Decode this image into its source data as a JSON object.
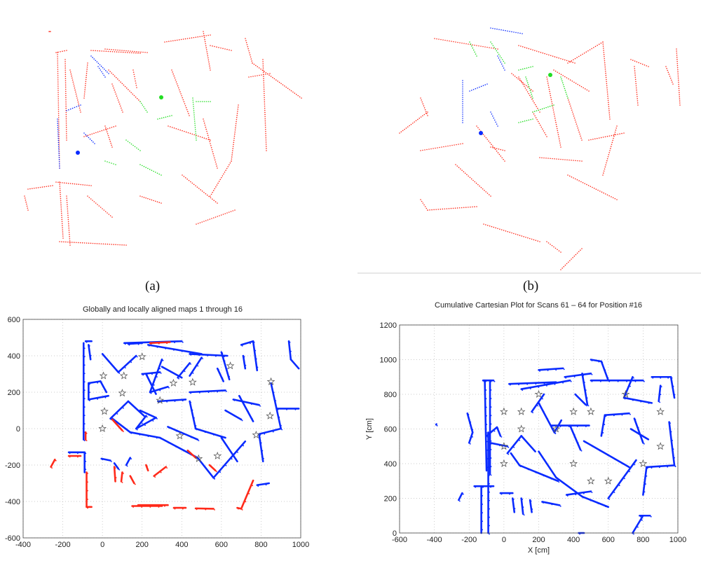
{
  "captions": {
    "a": "(a)",
    "b": "(b)"
  },
  "colors": {
    "red": "#ff2a1a",
    "green": "#22dd22",
    "blue": "#0a2bff",
    "star": "#555555"
  },
  "chart_data": [
    {
      "id": "a",
      "type": "scatter",
      "axes": "none",
      "grid": false,
      "series_colors": [
        "red",
        "green",
        "blue"
      ],
      "markers": [
        {
          "color": "blue",
          "shape": "dot"
        },
        {
          "color": "green",
          "shape": "dot"
        }
      ]
    },
    {
      "id": "b",
      "type": "scatter",
      "axes": "none",
      "grid": false,
      "series_colors": [
        "red",
        "green",
        "blue"
      ],
      "markers": [
        {
          "color": "blue",
          "shape": "dot"
        },
        {
          "color": "green",
          "shape": "dot"
        }
      ]
    },
    {
      "id": "c",
      "type": "scatter",
      "title": "Globally and locally aligned maps 1 through 16",
      "xlabel": "",
      "ylabel": "",
      "xlim": [
        -400,
        1000
      ],
      "ylim": [
        -600,
        600
      ],
      "xticks": [
        -400,
        -200,
        0,
        200,
        400,
        600,
        800,
        1000
      ],
      "yticks": [
        -600,
        -400,
        -200,
        0,
        200,
        400,
        600
      ],
      "grid": true,
      "series": [
        {
          "color": "#0a2bff",
          "segments": [
            [
              -95,
              -60,
              -95,
              470
            ],
            [
              -85,
              480,
              -55,
              480
            ],
            [
              -70,
              460,
              -60,
              380
            ],
            [
              -70,
              250,
              -10,
              260
            ],
            [
              -10,
              260,
              20,
              200
            ],
            [
              -70,
              250,
              -70,
              160
            ],
            [
              -70,
              160,
              30,
              180
            ],
            [
              0,
              410,
              80,
              310
            ],
            [
              80,
              310,
              170,
              400
            ],
            [
              110,
              470,
              400,
              480
            ],
            [
              130,
              465,
              200,
              470
            ],
            [
              230,
              460,
              500,
              410
            ],
            [
              300,
              380,
              240,
              200
            ],
            [
              200,
              300,
              290,
              310
            ],
            [
              220,
              300,
              270,
              190
            ],
            [
              240,
              200,
              330,
              230
            ],
            [
              300,
              340,
              400,
              280
            ],
            [
              380,
              280,
              440,
              360
            ],
            [
              440,
              410,
              630,
              400
            ],
            [
              500,
              390,
              440,
              290
            ],
            [
              600,
              420,
              640,
              270
            ],
            [
              580,
              330,
              610,
              260
            ],
            [
              700,
              460,
              760,
              480
            ],
            [
              760,
              480,
              780,
              320
            ],
            [
              710,
              400,
              720,
              330
            ],
            [
              940,
              480,
              950,
              380
            ],
            [
              950,
              380,
              990,
              330
            ],
            [
              850,
              250,
              900,
              0
            ],
            [
              900,
              0,
              790,
              -30
            ],
            [
              790,
              -30,
              810,
              -180
            ],
            [
              40,
              55,
              130,
              150
            ],
            [
              130,
              150,
              210,
              70
            ],
            [
              50,
              55,
              140,
              -20
            ],
            [
              140,
              -20,
              290,
              -50
            ],
            [
              290,
              -50,
              480,
              -160
            ],
            [
              480,
              -160,
              560,
              -270
            ],
            [
              560,
              -270,
              720,
              -70
            ],
            [
              280,
              150,
              420,
              160
            ],
            [
              440,
              200,
              620,
              210
            ],
            [
              660,
              160,
              790,
              130
            ],
            [
              690,
              180,
              760,
              40
            ],
            [
              440,
              150,
              470,
              0
            ],
            [
              470,
              0,
              620,
              -50
            ],
            [
              600,
              -50,
              680,
              -180
            ],
            [
              620,
              100,
              700,
              50
            ],
            [
              220,
              70,
              170,
              0
            ],
            [
              170,
              0,
              270,
              60
            ],
            [
              270,
              60,
              190,
              100
            ],
            [
              -170,
              -130,
              -90,
              -130
            ],
            [
              -90,
              -130,
              -90,
              -240
            ],
            [
              -5,
              -165,
              40,
              -175
            ],
            [
              880,
              110,
              990,
              110
            ],
            [
              780,
              -310,
              840,
              -300
            ],
            [
              330,
              10,
              480,
              -60
            ],
            [
              60,
              -190,
              80,
              -220
            ],
            [
              120,
              -200,
              140,
              -160
            ]
          ]
        },
        {
          "color": "#ff2a1a",
          "segments": [
            [
              -80,
              -240,
              -80,
              -430
            ],
            [
              -80,
              -430,
              -55,
              -430
            ],
            [
              -170,
              -150,
              -110,
              -150
            ],
            [
              -260,
              -210,
              -240,
              -170
            ],
            [
              150,
              -425,
              300,
              -425
            ],
            [
              180,
              -420,
              330,
              -420
            ],
            [
              360,
              -435,
              420,
              -435
            ],
            [
              470,
              -438,
              560,
              -440
            ],
            [
              680,
              -435,
              700,
              -440
            ],
            [
              700,
              -440,
              760,
              -285
            ],
            [
              50,
              50,
              100,
              -10
            ],
            [
              -85,
              -20,
              -85,
              -60
            ],
            [
              60,
              -210,
              65,
              -290
            ],
            [
              100,
              -240,
              95,
              -290
            ],
            [
              140,
              -260,
              160,
              -300
            ],
            [
              220,
              -200,
              230,
              -230
            ],
            [
              260,
              -260,
              320,
              -210
            ],
            [
              430,
              -120,
              470,
              -160
            ],
            [
              540,
              -200,
              570,
              -230
            ],
            [
              240,
              470,
              340,
              475
            ]
          ]
        }
      ],
      "stars": [
        [
          200,
          395
        ],
        [
          5,
          290
        ],
        [
          108,
          290
        ],
        [
          358,
          250
        ],
        [
          455,
          255
        ],
        [
          850,
          258
        ],
        [
          100,
          195
        ],
        [
          290,
          155
        ],
        [
          10,
          95
        ],
        [
          845,
          70
        ],
        [
          0,
          0
        ],
        [
          775,
          -35
        ],
        [
          390,
          -40
        ],
        [
          485,
          -165
        ],
        [
          580,
          -150
        ],
        [
          645,
          345
        ]
      ]
    },
    {
      "id": "d",
      "type": "scatter",
      "title": "Cumulative Cartesian Plot for Scans 61 – 64 for Position #16",
      "xlabel": "X [cm]",
      "ylabel": "Y [cm]",
      "xlim": [
        -600,
        1000
      ],
      "ylim": [
        0,
        1200
      ],
      "xticks": [
        -600,
        -400,
        -200,
        0,
        200,
        400,
        600,
        800,
        1000
      ],
      "yticks": [
        0,
        200,
        400,
        600,
        800,
        1000,
        1200
      ],
      "grid": true,
      "series": [
        {
          "color": "#0a2bff",
          "segments": [
            [
              -90,
              0,
              -90,
              580
            ],
            [
              -120,
              880,
              -60,
              880
            ],
            [
              -110,
              880,
              -100,
              360
            ],
            [
              -80,
              880,
              -80,
              340
            ],
            [
              -100,
              560,
              -40,
              610
            ],
            [
              -40,
              610,
              -20,
              560
            ],
            [
              -80,
              520,
              20,
              500
            ],
            [
              30,
              860,
              300,
              870
            ],
            [
              100,
              830,
              380,
              880
            ],
            [
              200,
              750,
              290,
              580
            ],
            [
              290,
              580,
              330,
              650
            ],
            [
              160,
              700,
              230,
              800
            ],
            [
              350,
              900,
              500,
              920
            ],
            [
              200,
              940,
              340,
              950
            ],
            [
              450,
              920,
              480,
              740
            ],
            [
              410,
              800,
              470,
              740
            ],
            [
              500,
              1000,
              560,
              990
            ],
            [
              560,
              990,
              600,
              880
            ],
            [
              500,
              880,
              800,
              880
            ],
            [
              740,
              900,
              690,
              780
            ],
            [
              690,
              780,
              850,
              750
            ],
            [
              850,
              900,
              960,
              900
            ],
            [
              960,
              900,
              980,
              780
            ],
            [
              900,
              850,
              890,
              760
            ],
            [
              950,
              640,
              980,
              390
            ],
            [
              980,
              390,
              820,
              380
            ],
            [
              820,
              380,
              800,
              220
            ],
            [
              20,
              460,
              100,
              560
            ],
            [
              100,
              560,
              180,
              470
            ],
            [
              40,
              460,
              90,
              390
            ],
            [
              90,
              390,
              310,
              300
            ],
            [
              200,
              470,
              300,
              320
            ],
            [
              300,
              320,
              450,
              210
            ],
            [
              450,
              210,
              600,
              150
            ],
            [
              600,
              200,
              760,
              420
            ],
            [
              270,
              620,
              490,
              620
            ],
            [
              380,
              620,
              440,
              480
            ],
            [
              460,
              530,
              720,
              380
            ],
            [
              580,
              680,
              720,
              690
            ],
            [
              580,
              680,
              560,
              560
            ],
            [
              730,
              600,
              830,
              540
            ],
            [
              750,
              660,
              800,
              520
            ],
            [
              -170,
              270,
              -60,
              270
            ],
            [
              -130,
              270,
              -130,
              0
            ],
            [
              -20,
              230,
              50,
              230
            ],
            [
              740,
              0,
              800,
              100
            ],
            [
              780,
              100,
              840,
              100
            ],
            [
              -210,
              690,
              -180,
              580
            ],
            [
              -200,
              520,
              -180,
              580
            ],
            [
              360,
              220,
              500,
              240
            ],
            [
              -260,
              190,
              -240,
              230
            ],
            [
              -390,
              625,
              -388,
              628
            ],
            [
              50,
              200,
              60,
              120
            ],
            [
              100,
              200,
              110,
              110
            ],
            [
              150,
              190,
              160,
              120
            ],
            [
              220,
              180,
              320,
              160
            ],
            [
              430,
              0,
              460,
              0
            ]
          ]
        }
      ],
      "stars": [
        [
          200,
          800
        ],
        [
          700,
          800
        ],
        [
          0,
          700
        ],
        [
          100,
          700
        ],
        [
          400,
          700
        ],
        [
          500,
          700
        ],
        [
          900,
          700
        ],
        [
          100,
          600
        ],
        [
          300,
          600
        ],
        [
          0,
          500
        ],
        [
          900,
          500
        ],
        [
          0,
          400
        ],
        [
          400,
          400
        ],
        [
          800,
          400
        ],
        [
          500,
          300
        ],
        [
          600,
          300
        ]
      ]
    }
  ]
}
